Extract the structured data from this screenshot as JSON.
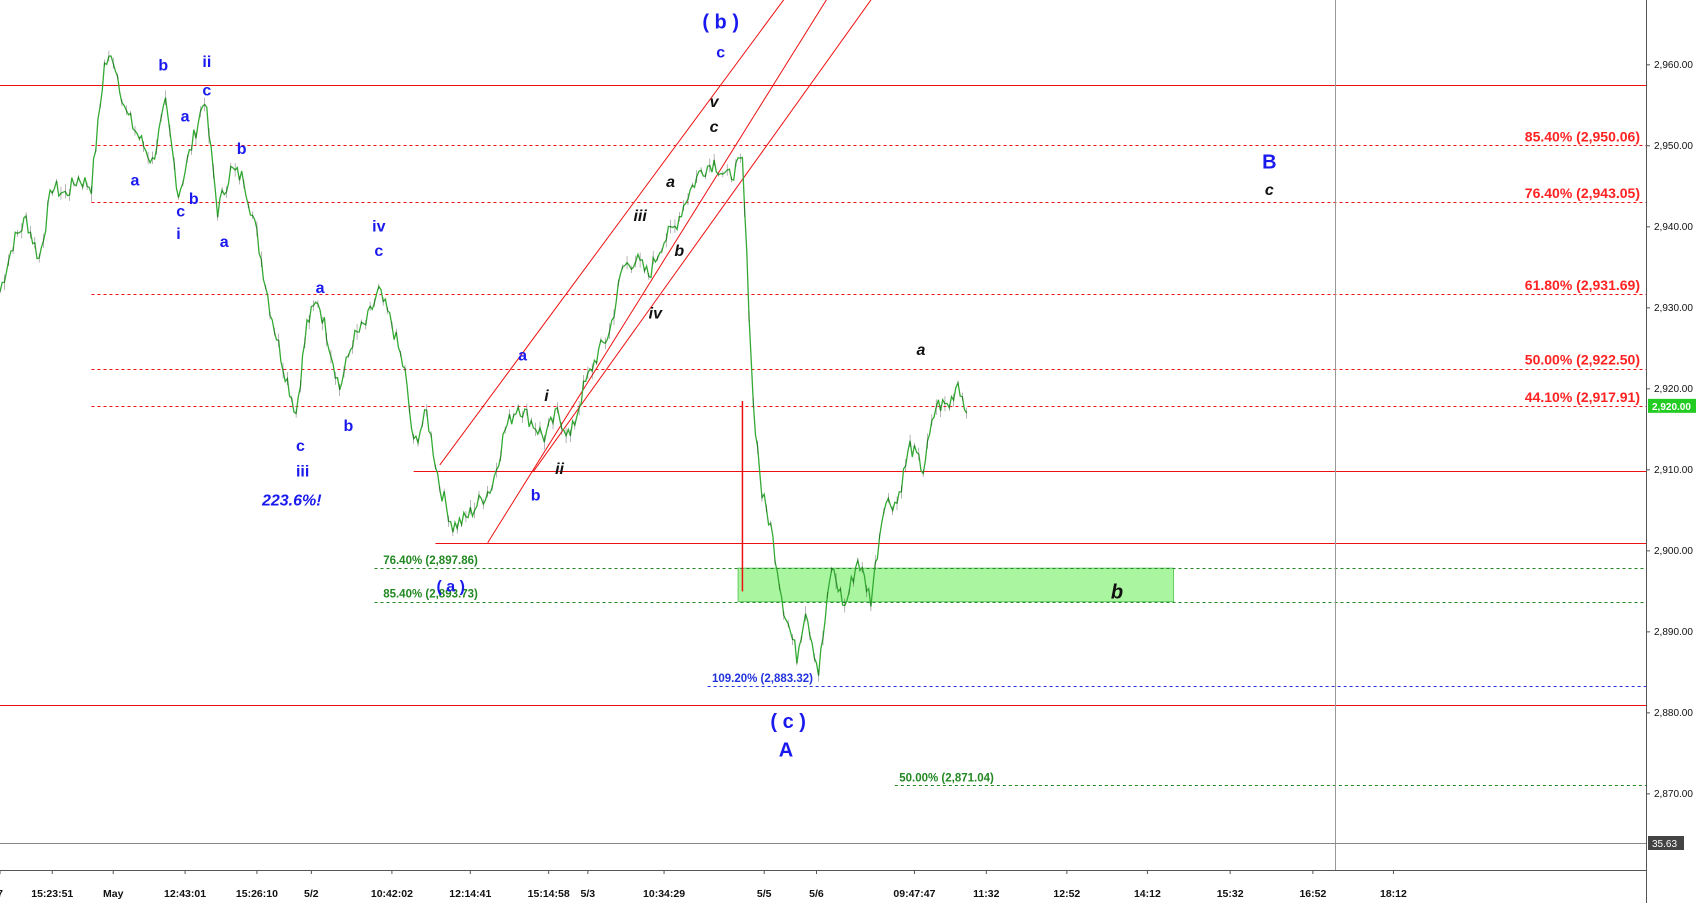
{
  "colors": {
    "red": "#ee1111",
    "fib_red": "#ff2222",
    "green_dash": "#228822",
    "blue_dash": "#2233dd",
    "wave_blue": "#1a1aee",
    "label_black": "#111111",
    "candle": "#33aa33",
    "zone_fill": "#aaf5a0",
    "price_tag": "#22cc22"
  },
  "chart_data": {
    "type": "line",
    "title": "",
    "xlabel": "",
    "ylabel": "",
    "ylim": [
      2860.6,
      2968.0
    ],
    "y_ticks": [
      "2,960.00",
      "2,950.00",
      "2,940.00",
      "2,930.00",
      "2,920.00",
      "2,910.00",
      "2,900.00",
      "2,890.00",
      "2,880.00",
      "2,870.00"
    ],
    "y_tick_values": [
      2960,
      2950,
      2940,
      2930,
      2920,
      2910,
      2900,
      2890,
      2880,
      2870
    ],
    "x_ticks": [
      "7",
      "15:23:51",
      "May",
      "12:43:01",
      "15:26:10",
      "5/2",
      "10:42:02",
      "12:14:41",
      "15:14:58",
      "5/3",
      "10:34:29",
      "5/5",
      "5/6",
      "09:47:47",
      "11:32",
      "12:52",
      "14:12",
      "15:32",
      "16:52",
      "18:12"
    ],
    "x_tick_index": [
      0,
      24,
      52,
      85,
      118,
      143,
      180,
      216,
      252,
      270,
      305,
      351,
      375,
      420,
      453,
      490,
      527,
      565,
      603,
      640
    ],
    "x_total": 756,
    "last_price_label": "2,920.00",
    "indicator_label": "35.63",
    "price_path": [
      [
        0,
        2932
      ],
      [
        6,
        2938
      ],
      [
        12,
        2941
      ],
      [
        18,
        2936
      ],
      [
        24,
        2945
      ],
      [
        30,
        2944
      ],
      [
        36,
        2946
      ],
      [
        42,
        2945
      ],
      [
        48,
        2960
      ],
      [
        52,
        2961
      ],
      [
        58,
        2954
      ],
      [
        64,
        2951
      ],
      [
        70,
        2948
      ],
      [
        76,
        2955
      ],
      [
        82,
        2944
      ],
      [
        88,
        2950
      ],
      [
        94,
        2956
      ],
      [
        100,
        2942
      ],
      [
        106,
        2947
      ],
      [
        112,
        2946
      ],
      [
        118,
        2939
      ],
      [
        124,
        2930
      ],
      [
        130,
        2923
      ],
      [
        136,
        2917
      ],
      [
        141,
        2928
      ],
      [
        146,
        2931
      ],
      [
        150,
        2927
      ],
      [
        156,
        2920
      ],
      [
        162,
        2926
      ],
      [
        168,
        2928
      ],
      [
        174,
        2932
      ],
      [
        180,
        2928
      ],
      [
        186,
        2922
      ],
      [
        190,
        2913
      ],
      [
        196,
        2917
      ],
      [
        202,
        2908
      ],
      [
        208,
        2903
      ],
      [
        214,
        2904
      ],
      [
        220,
        2906
      ],
      [
        226,
        2908
      ],
      [
        232,
        2915
      ],
      [
        238,
        2918
      ],
      [
        244,
        2916
      ],
      [
        250,
        2914
      ],
      [
        256,
        2917
      ],
      [
        262,
        2914
      ],
      [
        268,
        2920
      ],
      [
        274,
        2924
      ],
      [
        280,
        2927
      ],
      [
        286,
        2935
      ],
      [
        292,
        2936
      ],
      [
        298,
        2934
      ],
      [
        304,
        2938
      ],
      [
        310,
        2940
      ],
      [
        316,
        2944
      ],
      [
        322,
        2947
      ],
      [
        328,
        2948
      ],
      [
        334,
        2946
      ],
      [
        341,
        2948
      ],
      [
        346,
        2918
      ],
      [
        350,
        2907
      ],
      [
        354,
        2903
      ],
      [
        360,
        2893
      ],
      [
        366,
        2887
      ],
      [
        370,
        2893
      ],
      [
        376,
        2885
      ],
      [
        382,
        2898
      ],
      [
        388,
        2893
      ],
      [
        394,
        2899
      ],
      [
        400,
        2894
      ],
      [
        406,
        2906
      ],
      [
        412,
        2906
      ],
      [
        418,
        2913
      ],
      [
        424,
        2910
      ],
      [
        430,
        2918
      ],
      [
        436,
        2918
      ],
      [
        440,
        2921
      ],
      [
        444,
        2917
      ]
    ],
    "horizontal_lines": [
      {
        "y": 2957.5,
        "style": "solid",
        "color": "red",
        "x_from": 0,
        "x_to": 756
      },
      {
        "y": 2909.8,
        "style": "solid",
        "color": "red",
        "x_from": 190,
        "x_to": 756
      },
      {
        "y": 2901.0,
        "style": "solid",
        "color": "red",
        "x_from": 200,
        "x_to": 756
      },
      {
        "y": 2881.0,
        "style": "solid",
        "color": "red",
        "x_from": 0,
        "x_to": 756
      },
      {
        "y": 2950.06,
        "style": "dashed",
        "color": "red",
        "x_from": 42,
        "x_to": 756
      },
      {
        "y": 2943.05,
        "style": "dashed",
        "color": "red",
        "x_from": 42,
        "x_to": 756
      },
      {
        "y": 2931.69,
        "style": "dashed",
        "color": "red",
        "x_from": 42,
        "x_to": 756
      },
      {
        "y": 2922.5,
        "style": "dashed",
        "color": "red",
        "x_from": 42,
        "x_to": 756
      },
      {
        "y": 2917.91,
        "style": "dashed",
        "color": "red",
        "x_from": 42,
        "x_to": 756
      },
      {
        "y": 2897.86,
        "style": "dashed",
        "color": "green",
        "x_from": 172,
        "x_to": 756
      },
      {
        "y": 2893.73,
        "style": "dashed",
        "color": "green",
        "x_from": 172,
        "x_to": 756
      },
      {
        "y": 2883.32,
        "style": "dashed",
        "color": "blue",
        "x_from": 325,
        "x_to": 756
      },
      {
        "y": 2871.04,
        "style": "dashed",
        "color": "green",
        "x_from": 411,
        "x_to": 756
      }
    ],
    "fib_labels": [
      {
        "text": "85.40% (2,950.06)",
        "y": 2950.06,
        "color": "fib_red",
        "anchor": "right"
      },
      {
        "text": "76.40% (2,943.05)",
        "y": 2943.05,
        "color": "fib_red",
        "anchor": "right"
      },
      {
        "text": "61.80% (2,931.69)",
        "y": 2931.69,
        "color": "fib_red",
        "anchor": "right"
      },
      {
        "text": "50.00% (2,922.50)",
        "y": 2922.5,
        "color": "fib_red",
        "anchor": "right"
      },
      {
        "text": "44.10% (2,917.91)",
        "y": 2917.91,
        "color": "fib_red",
        "anchor": "right"
      },
      {
        "text": "76.40% (2,897.86)",
        "y": 2897.86,
        "color": "green_dash",
        "x": 176
      },
      {
        "text": "85.40% (2,893.73)",
        "y": 2893.73,
        "color": "green_dash",
        "x": 176
      },
      {
        "text": "109.20% (2,883.32)",
        "y": 2883.32,
        "color": "blue_dash",
        "x": 327
      },
      {
        "text": "50.00% (2,871.04)",
        "y": 2871.04,
        "color": "green_dash",
        "x": 413
      }
    ],
    "zone": {
      "x_from": 339,
      "x_to": 539,
      "y_top": 2897.86,
      "y_bottom": 2893.73
    },
    "channel_lines": [
      {
        "x1": 202,
        "y1": 2910.6,
        "x2": 364,
        "y2": 2969.5
      },
      {
        "x1": 224,
        "y1": 2901.0,
        "x2": 383,
        "y2": 2969.5
      },
      {
        "x1": 245,
        "y1": 2909.8,
        "x2": 404,
        "y2": 2969.5
      }
    ],
    "wave_labels": [
      {
        "text": "b",
        "x": 75,
        "y": 2959.3,
        "color": "wave_blue"
      },
      {
        "text": "ii",
        "x": 95,
        "y": 2959.7,
        "color": "wave_blue"
      },
      {
        "text": "c",
        "x": 95,
        "y": 2956.2,
        "color": "wave_blue"
      },
      {
        "text": "a",
        "x": 85,
        "y": 2953.0,
        "color": "wave_blue"
      },
      {
        "text": "a",
        "x": 62,
        "y": 2945.1,
        "color": "wave_blue"
      },
      {
        "text": "c",
        "x": 83,
        "y": 2941.3,
        "color": "wave_blue"
      },
      {
        "text": "b",
        "x": 89,
        "y": 2942.8,
        "color": "wave_blue"
      },
      {
        "text": "i",
        "x": 82,
        "y": 2938.5,
        "color": "wave_blue"
      },
      {
        "text": "b",
        "x": 111,
        "y": 2949.0,
        "color": "wave_blue"
      },
      {
        "text": "a",
        "x": 103,
        "y": 2937.5,
        "color": "wave_blue"
      },
      {
        "text": "iv",
        "x": 174,
        "y": 2939.4,
        "color": "wave_blue"
      },
      {
        "text": "c",
        "x": 174,
        "y": 2936.4,
        "color": "wave_blue"
      },
      {
        "text": "a",
        "x": 147,
        "y": 2931.8,
        "color": "wave_blue"
      },
      {
        "text": "b",
        "x": 160,
        "y": 2914.8,
        "color": "wave_blue"
      },
      {
        "text": "c",
        "x": 138,
        "y": 2912.3,
        "color": "wave_blue"
      },
      {
        "text": "iii",
        "x": 139,
        "y": 2909.2,
        "color": "wave_blue"
      },
      {
        "text": "223.6%!",
        "x": 134,
        "y": 2905.6,
        "color": "wave_blue",
        "italic": true
      },
      {
        "text": "a",
        "x": 240,
        "y": 2923.5,
        "color": "wave_blue"
      },
      {
        "text": "b",
        "x": 246,
        "y": 2906.2,
        "color": "wave_blue"
      },
      {
        "text": "( a )",
        "x": 207,
        "y": 2895.0,
        "color": "wave_blue"
      },
      {
        "text": "( b )",
        "x": 331,
        "y": 2964.5,
        "color": "wave_blue",
        "big": true
      },
      {
        "text": "c",
        "x": 331,
        "y": 2960.9,
        "color": "wave_blue"
      },
      {
        "text": "( c )",
        "x": 362,
        "y": 2878.1,
        "color": "wave_blue",
        "big": true
      },
      {
        "text": "A",
        "x": 361,
        "y": 2874.6,
        "color": "wave_blue",
        "big": true
      },
      {
        "text": "B",
        "x": 583,
        "y": 2947.2,
        "color": "wave_blue",
        "big": true
      },
      {
        "text": "c",
        "x": 583,
        "y": 2943.9,
        "color": "label_black",
        "italic": true
      },
      {
        "text": "i",
        "x": 251,
        "y": 2918.5,
        "color": "label_black",
        "italic": true
      },
      {
        "text": "ii",
        "x": 257,
        "y": 2909.5,
        "color": "label_black",
        "italic": true
      },
      {
        "text": "iii",
        "x": 294,
        "y": 2940.7,
        "color": "label_black",
        "italic": true
      },
      {
        "text": "iv",
        "x": 301,
        "y": 2928.7,
        "color": "label_black",
        "italic": true
      },
      {
        "text": "a",
        "x": 308,
        "y": 2944.9,
        "color": "label_black",
        "italic": true
      },
      {
        "text": "b",
        "x": 312,
        "y": 2936.4,
        "color": "label_black",
        "italic": true
      },
      {
        "text": "v",
        "x": 328,
        "y": 2954.8,
        "color": "label_black",
        "italic": true
      },
      {
        "text": "c",
        "x": 328,
        "y": 2951.7,
        "color": "label_black",
        "italic": true
      },
      {
        "text": "a",
        "x": 423,
        "y": 2924.2,
        "color": "label_black",
        "italic": true
      },
      {
        "text": "b",
        "x": 513,
        "y": 2894.1,
        "color": "label_black",
        "italic": true,
        "big": true
      }
    ]
  }
}
